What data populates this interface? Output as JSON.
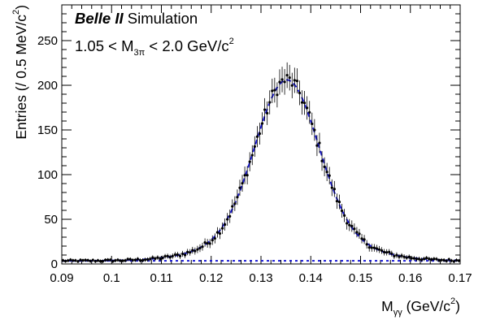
{
  "chart_data": {
    "type": "scatter",
    "xlabel": {
      "main": "M",
      "sub": "γγ",
      "unit": " (GeV/c",
      "sup": "2",
      "close": ")"
    },
    "ylabel": {
      "main": "Entries (/ 0.5 MeV/c",
      "sup": "2",
      "close": ")"
    },
    "xlim": [
      0.09,
      0.17
    ],
    "ylim": [
      0,
      290
    ],
    "x_ticks": [
      0.09,
      0.1,
      0.11,
      0.12,
      0.13,
      0.14,
      0.15,
      0.16,
      0.17
    ],
    "x_tick_labels": [
      "0.09",
      "0.1",
      "0.11",
      "0.12",
      "0.13",
      "0.14",
      "0.15",
      "0.16",
      "0.17"
    ],
    "y_ticks": [
      0,
      50,
      100,
      150,
      200,
      250
    ],
    "y_tick_labels": [
      "0",
      "50",
      "100",
      "150",
      "200",
      "250"
    ],
    "annotation": {
      "experiment": "Belle II",
      "tag": " Simulation",
      "selection_lo": "1.05 < M",
      "selection_sub": "3π",
      "selection_hi": " < 2.0 GeV/c",
      "selection_sup": "2"
    },
    "model": {
      "background_level": 3.5,
      "peak_mean": 0.1352,
      "peak_amplitude": 206,
      "core_sigma": 0.0062,
      "core_fraction": 0.82,
      "tail_sigma": 0.0115
    },
    "data_bin_width": 0.0005,
    "series": [
      {
        "role": "data",
        "color": "#000000"
      },
      {
        "role": "total-fit",
        "color": "#1a1ad6"
      },
      {
        "role": "background-fit",
        "color": "#1a1ad6"
      }
    ]
  }
}
